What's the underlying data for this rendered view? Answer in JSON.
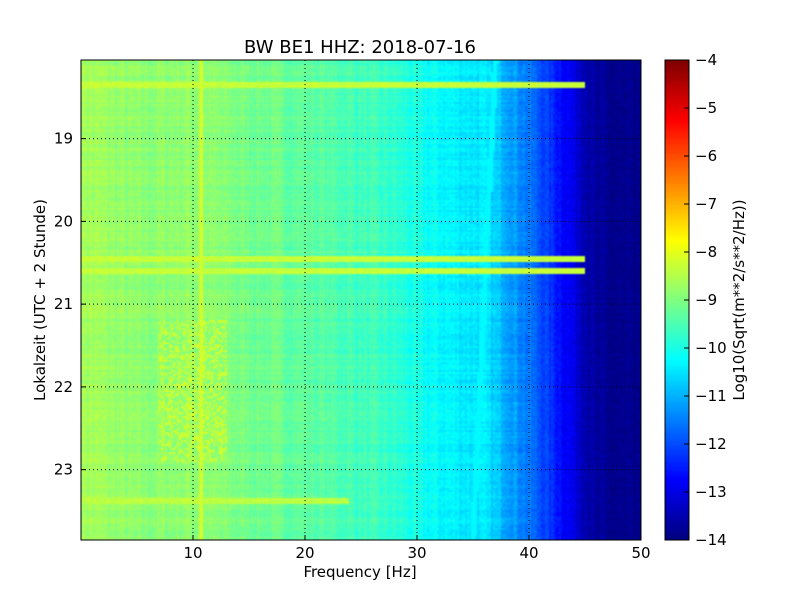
{
  "chart_data": {
    "type": "heatmap",
    "title": "BW BE1 HHZ: 2018-07-16",
    "xlabel": "Frequency [Hz]",
    "ylabel": "Lokalzeit (UTC + 2 Stunde)",
    "xlim": [
      0,
      50
    ],
    "ylim": [
      18.05,
      23.85
    ],
    "y_inverted": true,
    "grid": true,
    "x_ticks": [
      {
        "value": 10,
        "label": "10"
      },
      {
        "value": 20,
        "label": "20"
      },
      {
        "value": 30,
        "label": "30"
      },
      {
        "value": 40,
        "label": "40"
      },
      {
        "value": 50,
        "label": "50"
      }
    ],
    "y_ticks": [
      {
        "value": 19,
        "label": "19"
      },
      {
        "value": 20,
        "label": "20"
      },
      {
        "value": 21,
        "label": "21"
      },
      {
        "value": 22,
        "label": "22"
      },
      {
        "value": 23,
        "label": "23"
      }
    ],
    "colorbar": {
      "label": "Log10(Sqrt(m**2/s**2/Hz))",
      "range": [
        -14,
        -4
      ],
      "colormap": "jet",
      "ticks": [
        {
          "value": -4,
          "label": "−4"
        },
        {
          "value": -5,
          "label": "−5"
        },
        {
          "value": -6,
          "label": "−6"
        },
        {
          "value": -7,
          "label": "−7"
        },
        {
          "value": -8,
          "label": "−8"
        },
        {
          "value": -9,
          "label": "−9"
        },
        {
          "value": -10,
          "label": "−10"
        },
        {
          "value": -11,
          "label": "−11"
        },
        {
          "value": -12,
          "label": "−12"
        },
        {
          "value": -13,
          "label": "−13"
        },
        {
          "value": -14,
          "label": "−14"
        }
      ]
    },
    "frequency_profile": [
      {
        "freq": 0,
        "value": -8.6
      },
      {
        "freq": 5,
        "value": -8.9
      },
      {
        "freq": 10,
        "value": -8.8
      },
      {
        "freq": 15,
        "value": -9.1
      },
      {
        "freq": 20,
        "value": -9.3
      },
      {
        "freq": 25,
        "value": -9.6
      },
      {
        "freq": 28,
        "value": -9.8
      },
      {
        "freq": 31,
        "value": -10.2
      },
      {
        "freq": 34,
        "value": -10.4
      },
      {
        "freq": 36,
        "value": -10.5
      },
      {
        "freq": 38,
        "value": -11.0
      },
      {
        "freq": 40,
        "value": -11.6
      },
      {
        "freq": 42,
        "value": -12.3
      },
      {
        "freq": 44,
        "value": -13.0
      },
      {
        "freq": 46,
        "value": -13.8
      },
      {
        "freq": 50,
        "value": -14.0
      }
    ],
    "features": [
      {
        "type": "narrowband_line",
        "freq_start": 37.0,
        "freq_end": 35.0,
        "time_start": 18.05,
        "time_end": 23.85,
        "value": -10.3
      },
      {
        "type": "narrowband_line",
        "freq": 10.7,
        "time_start": 18.05,
        "time_end": 23.85,
        "value": -8.2
      },
      {
        "type": "broadband_event",
        "time": 18.35,
        "freq_max": 45,
        "value": -8.3
      },
      {
        "type": "broadband_event",
        "time": 20.45,
        "freq_max": 45,
        "value": -8.3
      },
      {
        "type": "broadband_event",
        "time": 20.6,
        "freq_max": 45,
        "value": -8.3
      },
      {
        "type": "broadband_event",
        "time": 23.38,
        "freq_max": 24,
        "value": -8.4
      },
      {
        "type": "energy_burst",
        "freq_range": [
          7,
          13
        ],
        "time_range": [
          21.2,
          22.9
        ],
        "value": -8.2
      }
    ]
  }
}
